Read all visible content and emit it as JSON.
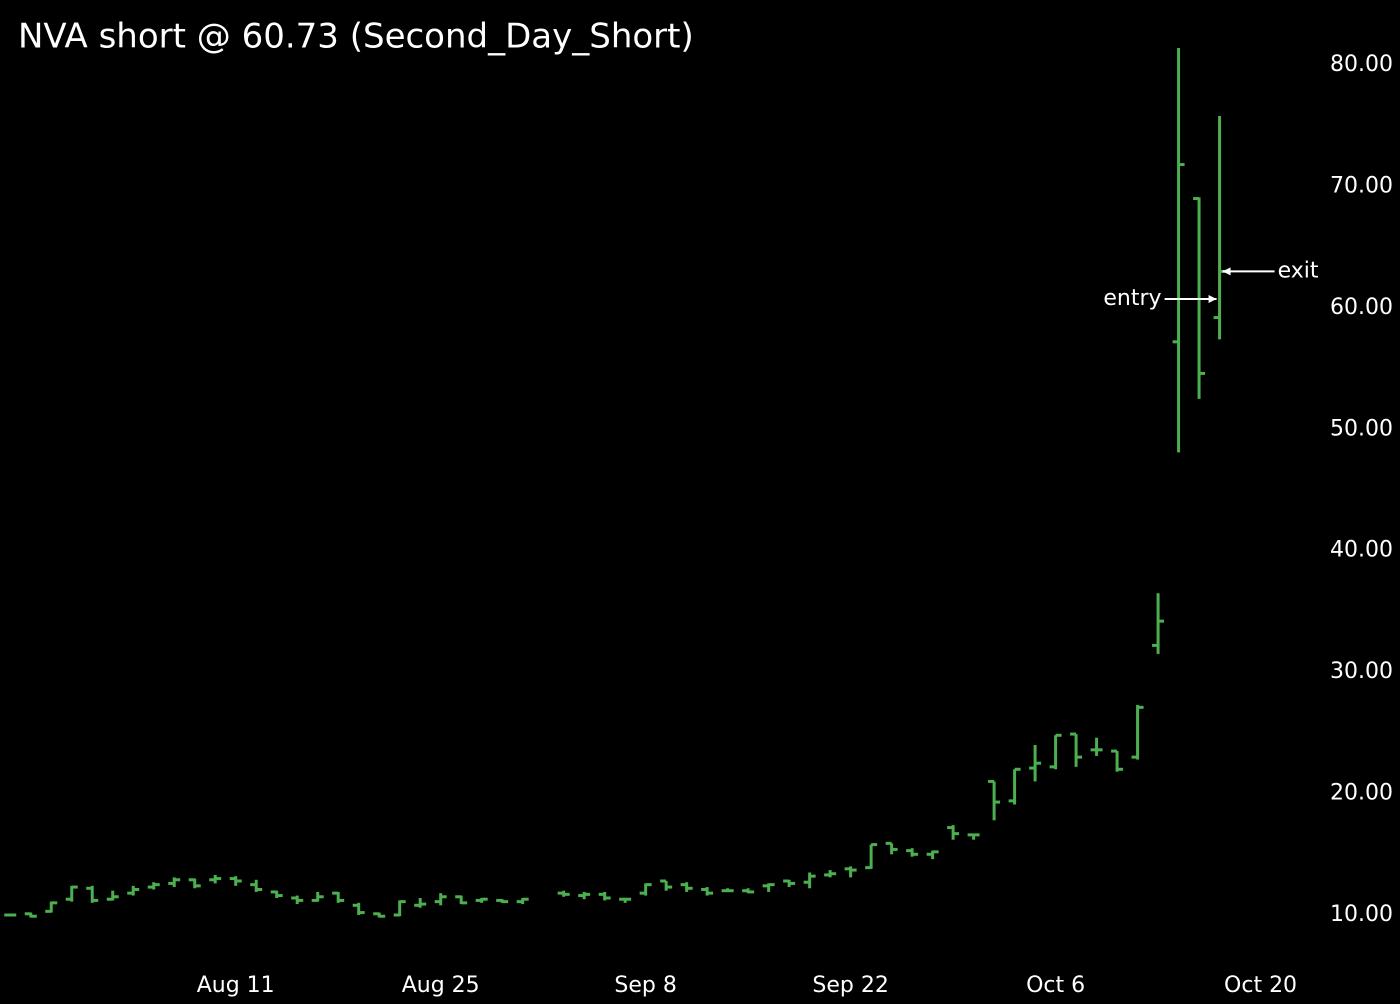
{
  "chart_data": {
    "type": "ohlc",
    "title": "NVA short @ 60.73 (Second_Day_Short)",
    "color": "#4caf50",
    "x": [
      0,
      1,
      2,
      3,
      4,
      5,
      6,
      7,
      8,
      9,
      10,
      11,
      12,
      13,
      14,
      15,
      16,
      17,
      18,
      19,
      20,
      21,
      22,
      23,
      24,
      25,
      26,
      27,
      28,
      29,
      30,
      31,
      32,
      33,
      34,
      35,
      36,
      37,
      38,
      39,
      40,
      41,
      42,
      43,
      44,
      45,
      46,
      47,
      48,
      49,
      50,
      51,
      52,
      53,
      54,
      55,
      56,
      57,
      58,
      59
    ],
    "open": [
      10.0,
      10.1,
      10.3,
      11.3,
      12.2,
      11.3,
      11.8,
      12.3,
      12.6,
      12.9,
      12.9,
      13.0,
      12.5,
      11.9,
      11.4,
      11.2,
      11.8,
      10.8,
      10.1,
      10.0,
      10.8,
      11.1,
      11.5,
      11.2,
      11.2,
      11.1,
      null,
      11.8,
      11.6,
      11.7,
      11.3,
      11.8,
      12.8,
      12.5,
      12.1,
      12.0,
      12.0,
      12.4,
      12.8,
      12.7,
      13.3,
      13.8,
      13.9,
      15.9,
      15.3,
      15.0,
      17.2,
      16.6,
      21.0,
      19.4,
      22.1,
      22.2,
      24.9,
      23.6,
      23.5,
      23.0,
      32.2,
      57.2,
      69.0,
      59.2
    ],
    "high": [
      10.1,
      10.2,
      11.1,
      12.4,
      12.4,
      12.0,
      12.4,
      12.7,
      13.1,
      13.0,
      13.3,
      13.2,
      12.9,
      12.0,
      11.6,
      11.9,
      11.9,
      11.0,
      10.2,
      11.2,
      11.4,
      11.8,
      11.6,
      11.4,
      11.3,
      11.4,
      null,
      12.0,
      11.9,
      11.9,
      11.4,
      12.6,
      12.8,
      12.7,
      12.3,
      12.2,
      12.2,
      12.6,
      12.9,
      13.5,
      13.7,
      14.0,
      15.8,
      15.9,
      15.5,
      15.3,
      17.4,
      16.6,
      21.0,
      22.0,
      24.0,
      24.8,
      24.9,
      24.6,
      23.5,
      27.3,
      36.5,
      81.4,
      69.1,
      75.8
    ],
    "low": [
      9.9,
      9.8,
      10.2,
      11.1,
      11.0,
      11.2,
      11.6,
      12.1,
      12.3,
      12.2,
      12.6,
      12.4,
      11.9,
      11.4,
      10.9,
      11.1,
      11.0,
      10.0,
      9.8,
      9.9,
      10.6,
      10.8,
      10.9,
      11.0,
      11.0,
      10.9,
      null,
      11.5,
      11.3,
      11.2,
      11.0,
      11.6,
      12.0,
      11.9,
      11.6,
      11.9,
      11.8,
      11.9,
      12.3,
      12.2,
      13.1,
      13.1,
      13.8,
      15.0,
      14.8,
      14.6,
      16.2,
      16.2,
      17.8,
      19.1,
      21.0,
      22.0,
      22.2,
      23.1,
      21.8,
      22.8,
      31.5,
      48.1,
      52.5,
      57.4
    ],
    "close": [
      10.0,
      9.9,
      11.0,
      12.3,
      11.2,
      11.5,
      12.1,
      12.5,
      12.9,
      12.4,
      13.0,
      12.8,
      12.1,
      11.6,
      11.2,
      11.5,
      11.2,
      10.2,
      9.9,
      11.1,
      10.9,
      11.5,
      11.0,
      11.3,
      11.1,
      11.3,
      null,
      11.7,
      11.7,
      11.4,
      11.3,
      12.5,
      12.3,
      12.2,
      11.8,
      12.0,
      11.9,
      12.5,
      12.6,
      13.2,
      13.4,
      13.7,
      15.8,
      15.4,
      15.0,
      15.2,
      16.7,
      16.6,
      19.3,
      22.0,
      22.5,
      24.8,
      23.0,
      23.6,
      22.0,
      27.1,
      34.2,
      71.8,
      54.6,
      63.0
    ],
    "xlim": [
      -0.5,
      63.9
    ],
    "xticks": [
      {
        "value": 11,
        "label": "Aug 11"
      },
      {
        "value": 21,
        "label": "Aug 25"
      },
      {
        "value": 31,
        "label": "Sep 8"
      },
      {
        "value": 41,
        "label": "Sep 22"
      },
      {
        "value": 51,
        "label": "Oct 6"
      },
      {
        "value": 61,
        "label": "Oct 20"
      }
    ],
    "ylim": [
      3.0,
      85.35
    ],
    "yticks": [
      {
        "value": 10,
        "label": "10.00"
      },
      {
        "value": 20,
        "label": "20.00"
      },
      {
        "value": 30,
        "label": "30.00"
      },
      {
        "value": 40,
        "label": "40.00"
      },
      {
        "value": 50,
        "label": "50.00"
      },
      {
        "value": 60,
        "label": "60.00"
      },
      {
        "value": 70,
        "label": "70.00"
      },
      {
        "value": 80,
        "label": "80.00"
      }
    ],
    "annotations": [
      {
        "label": "entry",
        "x": 59,
        "value": 60.73,
        "side": "left"
      },
      {
        "label": "exit",
        "x": 59,
        "value": 63.0,
        "side": "right"
      }
    ]
  }
}
